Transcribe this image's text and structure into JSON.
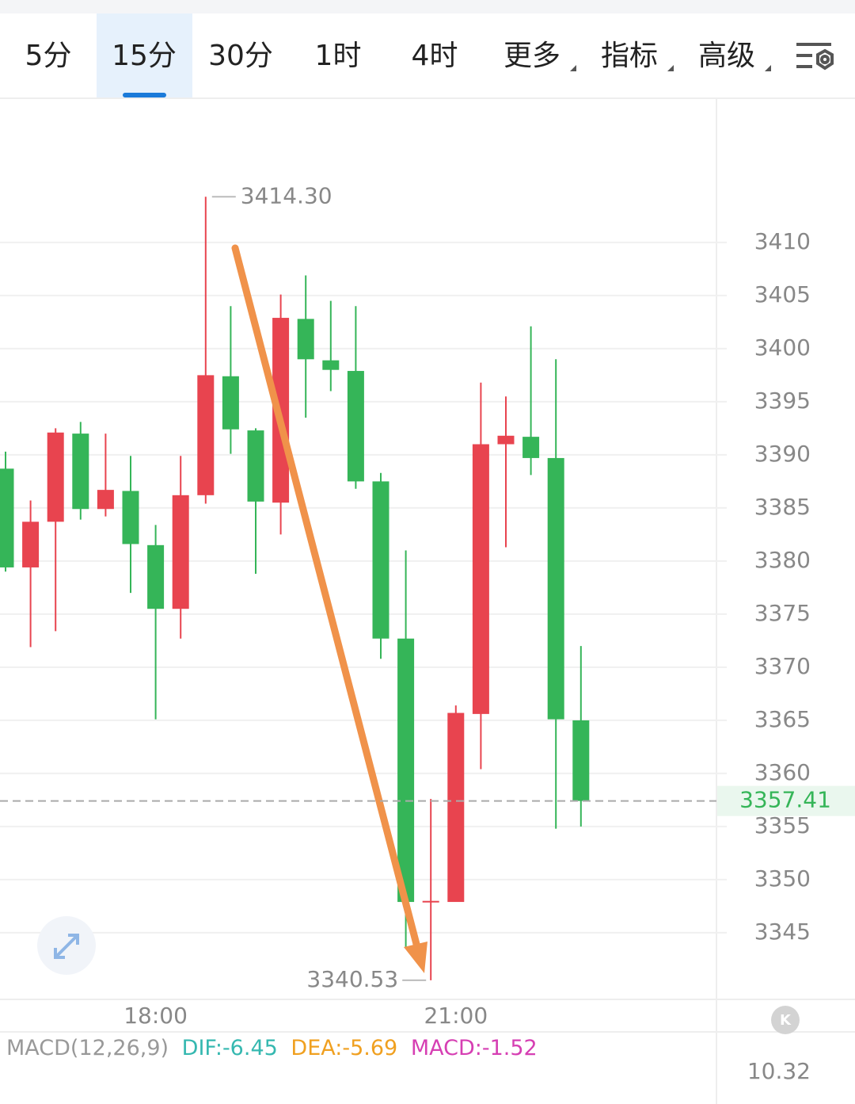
{
  "toolbar": {
    "tabs": [
      "5分",
      "15分",
      "30分",
      "1时",
      "4时",
      "更多",
      "指标",
      "高级"
    ],
    "active_tab": 1
  },
  "chart_data": {
    "type": "candlestick",
    "categories": [
      null,
      null,
      null,
      null,
      null,
      null,
      "18:00",
      null,
      null,
      null,
      null,
      null,
      null,
      null,
      null,
      null,
      null,
      null,
      "21:00",
      null,
      null,
      null,
      null,
      null
    ],
    "open": [
      3388.7,
      3379.4,
      3383.7,
      3392.0,
      3384.9,
      3386.6,
      3381.5,
      3375.5,
      3386.2,
      3397.4,
      3392.3,
      3385.5,
      3402.8,
      3398.9,
      3397.9,
      3387.5,
      3372.7,
      3347.9,
      3347.9,
      3365.6,
      3391.0,
      3391.7,
      3389.7,
      3365.0
    ],
    "high": [
      3390.3,
      3385.7,
      3392.5,
      3393.1,
      3392.0,
      3389.9,
      3383.4,
      3389.9,
      3414.3,
      3404.0,
      3392.5,
      3405.1,
      3406.9,
      3404.5,
      3404.0,
      3388.3,
      3381.0,
      3357.6,
      3366.4,
      3396.8,
      3395.5,
      3402.1,
      3399.0,
      3372.0
    ],
    "low": [
      3379.0,
      3371.9,
      3373.4,
      3383.9,
      3384.2,
      3377.0,
      3365.1,
      3372.7,
      3385.4,
      3390.1,
      3378.8,
      3382.5,
      3393.5,
      3396.0,
      3386.8,
      3370.8,
      3343.6,
      3340.53,
      3347.9,
      3360.4,
      3381.3,
      3388.1,
      3354.8,
      3355.0
    ],
    "close": [
      3379.4,
      3383.7,
      3392.1,
      3384.9,
      3386.7,
      3381.6,
      3375.5,
      3386.2,
      3397.5,
      3392.4,
      3385.6,
      3402.9,
      3399.0,
      3398.0,
      3387.5,
      3372.7,
      3347.9,
      3348.0,
      3365.7,
      3391.0,
      3391.8,
      3389.7,
      3365.1,
      3357.41
    ],
    "up_color": "#e8444f",
    "down_color": "#35b558",
    "ylim": [
      3338.8,
      3423.5
    ],
    "yticks": [
      3345,
      3350,
      3355,
      3360,
      3365,
      3370,
      3375,
      3380,
      3385,
      3390,
      3395,
      3400,
      3405,
      3410
    ],
    "grid": true,
    "high_marker": {
      "value": 3414.3,
      "label": "3414.30"
    },
    "low_marker": 3340.53,
    "last_price": 3357.41
  },
  "indicator": {
    "name": "MACD(12,26,9)",
    "dif": "DIF:-6.45",
    "dea": "DEA:-5.69",
    "macd": "MACD:-1.52",
    "axis_label": "10.32"
  }
}
